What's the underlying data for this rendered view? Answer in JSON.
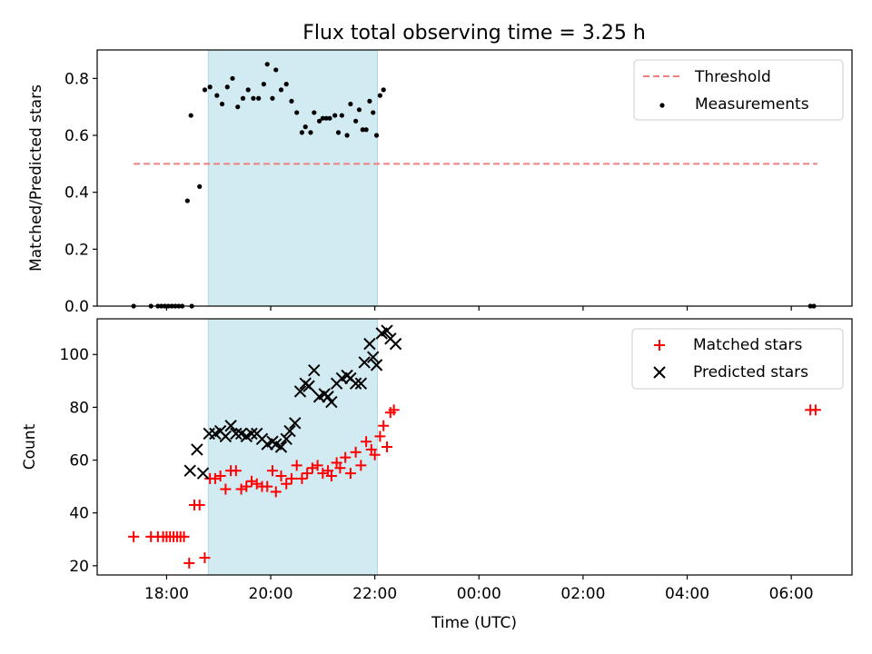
{
  "title": "Flux total observing time = 3.25 h",
  "colors": {
    "threshold": "#f08080",
    "measurements": "#000000",
    "matched": "#ff0000",
    "predicted": "#000000",
    "shade": "#add8e6"
  },
  "chart_data": [
    {
      "type": "scatter",
      "ylabel": "Matched/Predicted stars",
      "ylim": [
        0,
        0.9
      ],
      "y_ticks": [
        "0.0",
        "0.2",
        "0.4",
        "0.6",
        "0.8"
      ],
      "y_tick_values": [
        0,
        0.2,
        0.4,
        0.6,
        0.8
      ],
      "xlim": [
        "16:40",
        "07:10"
      ],
      "x_tick_values": [
        "18:00",
        "20:00",
        "22:00",
        "00:00",
        "02:00",
        "04:00",
        "06:00"
      ],
      "shaded_interval": [
        "18:48",
        "22:03"
      ],
      "legend": [
        "Threshold",
        "Measurements"
      ],
      "legend_position": "upper right",
      "threshold": {
        "name": "Threshold",
        "y": 0.5,
        "x_range": [
          "17:22",
          "06:30"
        ],
        "style": "dashed"
      },
      "series": [
        {
          "name": "Measurements",
          "points": [
            [
              "17:22",
              0.0
            ],
            [
              "17:42",
              0.0
            ],
            [
              "17:50",
              0.0
            ],
            [
              "17:54",
              0.0
            ],
            [
              "17:58",
              0.0
            ],
            [
              "18:02",
              0.0
            ],
            [
              "18:06",
              0.0
            ],
            [
              "18:10",
              0.0
            ],
            [
              "18:14",
              0.0
            ],
            [
              "18:18",
              0.0
            ],
            [
              "18:29",
              0.0
            ],
            [
              "18:24",
              0.37
            ],
            [
              "18:28",
              0.67
            ],
            [
              "18:38",
              0.42
            ],
            [
              "18:44",
              0.76
            ],
            [
              "18:50",
              0.77
            ],
            [
              "18:58",
              0.74
            ],
            [
              "19:04",
              0.71
            ],
            [
              "19:10",
              0.77
            ],
            [
              "19:16",
              0.8
            ],
            [
              "19:22",
              0.7
            ],
            [
              "19:28",
              0.73
            ],
            [
              "19:34",
              0.76
            ],
            [
              "19:40",
              0.73
            ],
            [
              "19:46",
              0.73
            ],
            [
              "19:52",
              0.78
            ],
            [
              "19:56",
              0.85
            ],
            [
              "20:02",
              0.73
            ],
            [
              "20:06",
              0.83
            ],
            [
              "20:12",
              0.76
            ],
            [
              "20:18",
              0.78
            ],
            [
              "20:24",
              0.72
            ],
            [
              "20:30",
              0.68
            ],
            [
              "20:36",
              0.61
            ],
            [
              "20:40",
              0.63
            ],
            [
              "20:46",
              0.61
            ],
            [
              "20:50",
              0.68
            ],
            [
              "20:56",
              0.65
            ],
            [
              "21:00",
              0.66
            ],
            [
              "21:04",
              0.66
            ],
            [
              "21:08",
              0.66
            ],
            [
              "21:14",
              0.67
            ],
            [
              "21:18",
              0.61
            ],
            [
              "21:22",
              0.67
            ],
            [
              "21:28",
              0.6
            ],
            [
              "21:32",
              0.71
            ],
            [
              "21:38",
              0.65
            ],
            [
              "21:42",
              0.69
            ],
            [
              "21:46",
              0.62
            ],
            [
              "21:50",
              0.62
            ],
            [
              "21:54",
              0.72
            ],
            [
              "21:58",
              0.68
            ],
            [
              "22:02",
              0.6
            ],
            [
              "22:06",
              0.74
            ],
            [
              "22:10",
              0.76
            ],
            [
              "06:22",
              0.0
            ],
            [
              "06:26",
              0.0
            ]
          ]
        }
      ]
    },
    {
      "type": "scatter",
      "xlabel": "Time (UTC)",
      "ylabel": "Count",
      "ylim": [
        16.5,
        113.5
      ],
      "y_ticks": [
        "20",
        "40",
        "60",
        "80",
        "100"
      ],
      "y_tick_values": [
        20,
        40,
        60,
        80,
        100
      ],
      "xlim": [
        "16:40",
        "07:10"
      ],
      "x_ticks": [
        "18:00",
        "20:00",
        "22:00",
        "00:00",
        "02:00",
        "04:00",
        "06:00"
      ],
      "x_tick_values": [
        "18:00",
        "20:00",
        "22:00",
        "00:00",
        "02:00",
        "04:00",
        "06:00"
      ],
      "shaded_interval": [
        "18:48",
        "22:03"
      ],
      "legend": [
        "Matched stars",
        "Predicted stars"
      ],
      "legend_position": "upper right",
      "series": [
        {
          "name": "Matched stars",
          "marker": "plus",
          "points": [
            [
              "17:22",
              31
            ],
            [
              "17:42",
              31
            ],
            [
              "17:50",
              31
            ],
            [
              "17:56",
              31
            ],
            [
              "18:00",
              31
            ],
            [
              "18:04",
              31
            ],
            [
              "18:08",
              31
            ],
            [
              "18:12",
              31
            ],
            [
              "18:16",
              31
            ],
            [
              "18:20",
              31
            ],
            [
              "18:26",
              21
            ],
            [
              "18:32",
              43
            ],
            [
              "18:38",
              43
            ],
            [
              "18:44",
              23
            ],
            [
              "18:50",
              53
            ],
            [
              "18:56",
              53
            ],
            [
              "19:02",
              54
            ],
            [
              "19:08",
              49
            ],
            [
              "19:14",
              56
            ],
            [
              "19:20",
              56
            ],
            [
              "19:26",
              49
            ],
            [
              "19:32",
              50
            ],
            [
              "19:38",
              52
            ],
            [
              "19:44",
              51
            ],
            [
              "19:50",
              50
            ],
            [
              "19:56",
              50
            ],
            [
              "20:02",
              56
            ],
            [
              "20:06",
              48
            ],
            [
              "20:12",
              54
            ],
            [
              "20:18",
              51
            ],
            [
              "20:24",
              53
            ],
            [
              "20:30",
              58
            ],
            [
              "20:36",
              53
            ],
            [
              "20:42",
              55
            ],
            [
              "20:48",
              57
            ],
            [
              "20:54",
              58
            ],
            [
              "21:00",
              55
            ],
            [
              "21:06",
              56
            ],
            [
              "21:10",
              54
            ],
            [
              "21:16",
              59
            ],
            [
              "21:20",
              57
            ],
            [
              "21:26",
              61
            ],
            [
              "21:32",
              55
            ],
            [
              "21:38",
              63
            ],
            [
              "21:44",
              58
            ],
            [
              "21:50",
              67
            ],
            [
              "21:56",
              64
            ],
            [
              "22:00",
              62
            ],
            [
              "22:06",
              69
            ],
            [
              "22:10",
              73
            ],
            [
              "22:14",
              65
            ],
            [
              "22:18",
              78
            ],
            [
              "22:22",
              79
            ],
            [
              "06:22",
              79
            ],
            [
              "06:28",
              79
            ]
          ]
        },
        {
          "name": "Predicted stars",
          "marker": "x",
          "points": [
            [
              "18:27",
              56
            ],
            [
              "18:35",
              64
            ],
            [
              "18:42",
              55
            ],
            [
              "18:49",
              70
            ],
            [
              "18:56",
              70
            ],
            [
              "19:02",
              71
            ],
            [
              "19:08",
              69
            ],
            [
              "19:14",
              73
            ],
            [
              "19:20",
              70
            ],
            [
              "19:26",
              70
            ],
            [
              "19:32",
              69
            ],
            [
              "19:38",
              70
            ],
            [
              "19:44",
              70
            ],
            [
              "19:50",
              68
            ],
            [
              "19:56",
              66
            ],
            [
              "20:02",
              67
            ],
            [
              "20:06",
              66
            ],
            [
              "20:12",
              65
            ],
            [
              "20:18",
              68
            ],
            [
              "20:22",
              71
            ],
            [
              "20:28",
              74
            ],
            [
              "20:34",
              86
            ],
            [
              "20:40",
              89
            ],
            [
              "20:44",
              88
            ],
            [
              "20:50",
              94
            ],
            [
              "20:56",
              84
            ],
            [
              "21:02",
              85
            ],
            [
              "21:06",
              84
            ],
            [
              "21:10",
              82
            ],
            [
              "21:16",
              89
            ],
            [
              "21:22",
              91
            ],
            [
              "21:28",
              92
            ],
            [
              "21:32",
              91
            ],
            [
              "21:38",
              89
            ],
            [
              "21:44",
              89
            ],
            [
              "21:48",
              97
            ],
            [
              "21:54",
              104
            ],
            [
              "21:58",
              99
            ],
            [
              "22:02",
              96
            ],
            [
              "22:08",
              108
            ],
            [
              "22:14",
              109
            ],
            [
              "22:18",
              106
            ],
            [
              "22:24",
              104
            ]
          ]
        }
      ]
    }
  ]
}
